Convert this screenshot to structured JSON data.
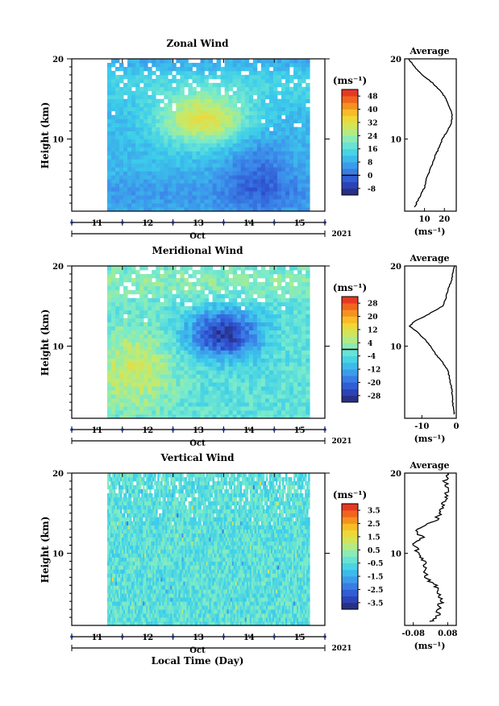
{
  "chart_data": [
    {
      "type": "heatmap",
      "title": "Zonal Wind",
      "ylabel": "Height (km)",
      "xlabel": "",
      "date_label": "Oct",
      "year_label": "2021",
      "x_ticks": [
        "11",
        "12",
        "13",
        "14",
        "15"
      ],
      "xlim": [
        10.5,
        15.5
      ],
      "data_x_range": [
        11.2,
        15.2
      ],
      "y_ticks": [
        10,
        20
      ],
      "ylim": [
        1,
        20
      ],
      "colorbar": {
        "unit_label": "(ms⁻¹)",
        "ticks": [
          "48",
          "40",
          "32",
          "24",
          "16",
          "8",
          "0",
          "-8"
        ],
        "range": [
          -12,
          52
        ],
        "zero_line": 0
      },
      "field_features": {
        "background_value": 10,
        "maximum": {
          "x": 13.1,
          "y": 12.5,
          "value": 34
        },
        "minimum_region": {
          "x": 14.2,
          "y": 5.5,
          "value": 0
        }
      },
      "profile": {
        "title": "Average",
        "x_ticks": [
          "10",
          "20"
        ],
        "xlim": [
          0,
          26
        ],
        "xlabel": "(ms⁻¹)",
        "height": [
          1.5,
          2,
          3,
          4,
          5,
          6,
          7,
          8,
          9,
          10,
          11,
          12,
          13,
          14,
          15,
          16,
          17,
          18,
          19,
          20
        ],
        "values": [
          5,
          6,
          8,
          10,
          11,
          12.5,
          14,
          15.5,
          17.5,
          19,
          21.5,
          23.5,
          24,
          22.5,
          21,
          18,
          14,
          9,
          5,
          2
        ]
      }
    },
    {
      "type": "heatmap",
      "title": "Meridional Wind",
      "ylabel": "Height (km)",
      "xlabel": "",
      "date_label": "Oct",
      "year_label": "2021",
      "x_ticks": [
        "11",
        "12",
        "13",
        "14",
        "15"
      ],
      "xlim": [
        10.5,
        15.5
      ],
      "data_x_range": [
        11.2,
        15.2
      ],
      "y_ticks": [
        10,
        20
      ],
      "ylim": [
        1,
        20
      ],
      "colorbar": {
        "unit_label": "(ms⁻¹)",
        "ticks": [
          "28",
          "20",
          "12",
          "4",
          "-4",
          "-12",
          "-20",
          "-28"
        ],
        "range": [
          -32,
          32
        ],
        "zero_line": 0
      },
      "field_features": {
        "background_value": -3,
        "maximum_region": {
          "x": 11.7,
          "y": 7,
          "value": 10
        },
        "minimum": {
          "x": 13.5,
          "y": 11.5,
          "value": -28
        }
      },
      "profile": {
        "title": "Average",
        "x_ticks": [
          "-10",
          "0"
        ],
        "xlim": [
          -15,
          0
        ],
        "xlabel": "(ms⁻¹)",
        "height": [
          1.5,
          2,
          3,
          4,
          5,
          6,
          7,
          8,
          9,
          10,
          11,
          12,
          12.5,
          13,
          14,
          15,
          16,
          17,
          18,
          19,
          20
        ],
        "values": [
          -0.5,
          -0.8,
          -1,
          -1.2,
          -1.5,
          -2,
          -2.5,
          -4,
          -6,
          -7.5,
          -9.5,
          -12,
          -13.5,
          -12.5,
          -8,
          -4,
          -3,
          -2.5,
          -1.5,
          -1,
          -0.5
        ]
      }
    },
    {
      "type": "heatmap",
      "title": "Vertical Wind",
      "ylabel": "Height (km)",
      "xlabel": "Local Time (Day)",
      "date_label": "Oct",
      "year_label": "2021",
      "x_ticks": [
        "11",
        "12",
        "13",
        "14",
        "15"
      ],
      "xlim": [
        10.5,
        15.5
      ],
      "data_x_range": [
        11.2,
        15.2
      ],
      "y_ticks": [
        10,
        20
      ],
      "ylim": [
        1,
        20
      ],
      "colorbar": {
        "unit_label": "(ms⁻¹)",
        "ticks": [
          "3.5",
          "2.5",
          "1.5",
          "0.5",
          "-0.5",
          "-1.5",
          "-2.5",
          "-3.5"
        ],
        "range": [
          -4,
          4
        ]
      },
      "field_features": {
        "background_value": -0.4
      },
      "profile": {
        "title": "Average",
        "x_ticks": [
          "-0.08",
          "0.08"
        ],
        "xlim": [
          -0.12,
          0.12
        ],
        "xlabel": "(ms⁻¹)",
        "height": [
          1.5,
          2,
          3,
          4,
          5,
          6,
          7,
          8,
          9,
          10,
          11,
          12,
          13,
          14,
          15,
          16,
          17,
          18,
          19,
          20
        ],
        "values": [
          0,
          0.03,
          0.04,
          0.05,
          0.04,
          0.02,
          -0.02,
          -0.02,
          -0.03,
          -0.05,
          -0.08,
          -0.04,
          -0.07,
          0.02,
          0.05,
          0.06,
          0.07,
          0.08,
          0.07,
          0.08
        ]
      }
    }
  ]
}
